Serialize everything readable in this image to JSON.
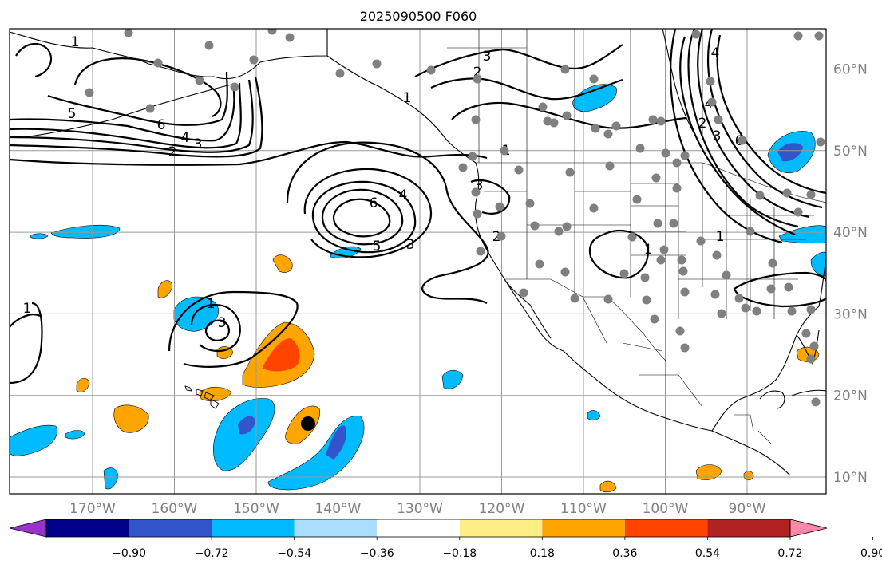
{
  "title": "2025090500 F060",
  "map": {
    "longitudes": [
      {
        "value": -170,
        "label": "170°W"
      },
      {
        "value": -160,
        "label": "160°W"
      },
      {
        "value": -150,
        "label": "150°W"
      },
      {
        "value": -140,
        "label": "140°W"
      },
      {
        "value": -130,
        "label": "130°W"
      },
      {
        "value": -120,
        "label": "120°W"
      },
      {
        "value": -110,
        "label": "110°W"
      },
      {
        "value": -100,
        "label": "100°W"
      },
      {
        "value": -90,
        "label": "90°W"
      }
    ],
    "latitudes": [
      {
        "value": 60,
        "label": "60°N"
      },
      {
        "value": 50,
        "label": "50°N"
      },
      {
        "value": 40,
        "label": "40°N"
      },
      {
        "value": 30,
        "label": "30°N"
      },
      {
        "value": 20,
        "label": "20°N"
      },
      {
        "value": 10,
        "label": "10°N"
      }
    ],
    "lon_range": [
      -180,
      -80
    ],
    "lat_range": [
      8,
      65
    ],
    "contour_labels": [
      "1",
      "2",
      "3",
      "4",
      "5",
      "6"
    ],
    "station_marker_color": "#808080",
    "storm_marker_color": "#000000"
  },
  "colorbar": {
    "ticks": [
      "−0.90",
      "−0.72",
      "−0.54",
      "−0.36",
      "−0.18",
      "0.18",
      "0.36",
      "0.54",
      "0.72",
      "0.90"
    ],
    "colors": [
      "#9933cc",
      "#000088",
      "#3355cc",
      "#00bbff",
      "#aaddff",
      "#ffffff",
      "#ffee88",
      "#ffa500",
      "#ff4400",
      "#b22222",
      "#ff88aa"
    ],
    "extend": "both"
  }
}
